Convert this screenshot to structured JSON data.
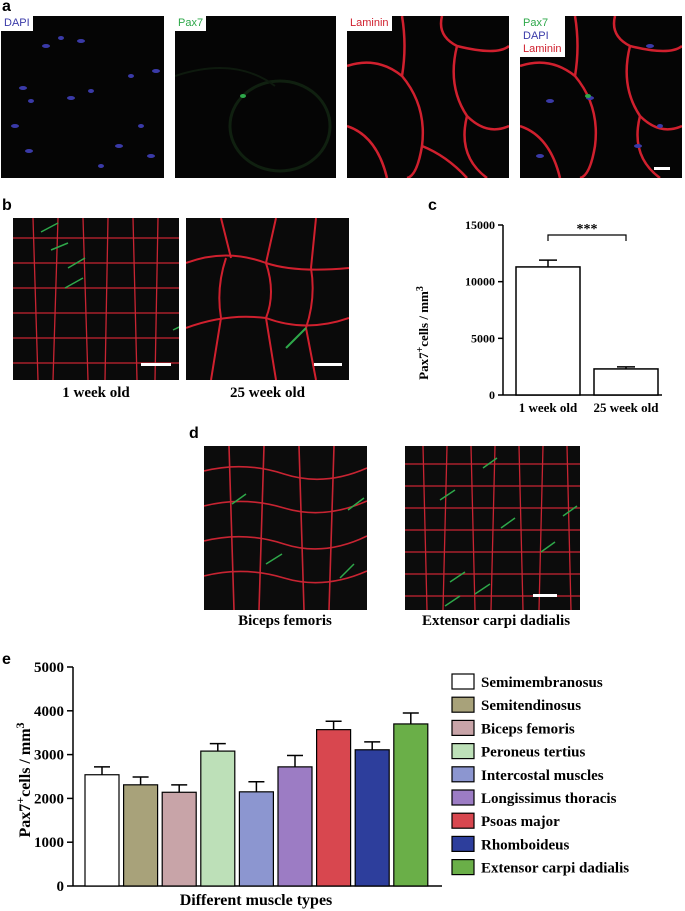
{
  "panel_a": {
    "letter": "a",
    "labels": {
      "dapi": "DAPI",
      "pax7": "Pax7",
      "laminin": "Laminin",
      "merged": [
        "Pax7",
        "DAPI",
        "Laminin"
      ]
    },
    "colors": {
      "dapi": "#3a3aa8",
      "pax7": "#2ea84a",
      "laminin": "#d0202e"
    }
  },
  "panel_b": {
    "letter": "b",
    "captions": [
      "1 week old",
      "25 week old"
    ]
  },
  "panel_c": {
    "letter": "c"
  },
  "panel_d": {
    "letter": "d",
    "captions": [
      "Biceps femoris",
      "Extensor carpi dadialis"
    ]
  },
  "panel_e": {
    "letter": "e"
  },
  "chart_data": [
    {
      "type": "bar",
      "panel": "c",
      "categories": [
        "1 week old",
        "25 week old"
      ],
      "values": [
        11300,
        2300
      ],
      "errors": [
        600,
        180
      ],
      "ylabel": "Pax7+ cells / mm3",
      "ylabel_parts": {
        "base": "Pax7",
        "sup": "+",
        "mid": "cells / mm",
        "sup2": "3"
      },
      "yticks": [
        0,
        5000,
        10000,
        15000
      ],
      "ylim": [
        0,
        15000
      ],
      "significance": "***",
      "bar_color": "#ffffff"
    },
    {
      "type": "bar",
      "panel": "e",
      "categories": [
        "Semimembranosus",
        "Semitendinosus",
        "Biceps femoris",
        "Peroneus tertius",
        "Intercostal muscles",
        "Longissimus thoracis",
        "Psoas major",
        "Rhomboideus",
        "Extensor carpi dadialis"
      ],
      "values": [
        2540,
        2310,
        2140,
        3080,
        2150,
        2720,
        3570,
        3110,
        3700
      ],
      "errors": [
        180,
        180,
        170,
        170,
        230,
        260,
        190,
        180,
        250
      ],
      "colors": [
        "#ffffff",
        "#a8a27a",
        "#c8a4a8",
        "#bde0b8",
        "#8c96d0",
        "#9c7cc4",
        "#d8474f",
        "#2d3e9c",
        "#6aaf48"
      ],
      "xlabel": "Different muscle types",
      "ylabel": "Pax7+ cells / mm3",
      "ylabel_parts": {
        "base": "Pax7",
        "sup": "+",
        "mid": "cells / mm",
        "sup2": "3"
      },
      "yticks": [
        0,
        1000,
        2000,
        3000,
        4000,
        5000
      ],
      "ylim": [
        0,
        5000
      ],
      "legend": "right"
    }
  ]
}
